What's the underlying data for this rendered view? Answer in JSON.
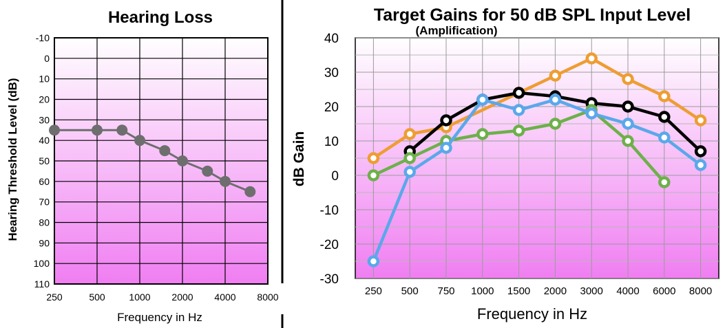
{
  "chart_data": [
    {
      "type": "line",
      "title": "Hearing Loss",
      "xlabel": "Frequency in Hz",
      "ylabel": "Hearing Threshold Level (dB)",
      "x_scale": "log2",
      "x_ticks": [
        250,
        500,
        1000,
        2000,
        4000,
        8000
      ],
      "y_ticks": [
        -10,
        0,
        10,
        20,
        30,
        40,
        50,
        60,
        70,
        80,
        90,
        100,
        110
      ],
      "ylim": [
        -10,
        110
      ],
      "y_inverted": true,
      "grid": true,
      "background": "white-to-magenta gradient",
      "series": [
        {
          "color": "#6e6e6e",
          "x": [
            250,
            500,
            750,
            1000,
            1500,
            2000,
            3000,
            4000,
            6000
          ],
          "y": [
            35,
            35,
            35,
            40,
            45,
            50,
            55,
            60,
            65
          ]
        }
      ]
    },
    {
      "type": "line",
      "title": "Target Gains for 50 dB SPL Input Level",
      "subtitle": "(Amplification)",
      "xlabel": "Frequency in Hz",
      "ylabel": "dB Gain",
      "categories": [
        "250",
        "500",
        "750",
        "1000",
        "1500",
        "2000",
        "3000",
        "4000",
        "6000",
        "8000"
      ],
      "y_ticks": [
        40,
        30,
        20,
        10,
        0,
        -10,
        -20,
        -30
      ],
      "ylim": [
        -30,
        40
      ],
      "grid": true,
      "background": "white-to-magenta gradient",
      "series": [
        {
          "color": "#ee9d33",
          "values": [
            5,
            12,
            14,
            null,
            24,
            29,
            34,
            28,
            23,
            16
          ]
        },
        {
          "color": "#000000",
          "values": [
            null,
            7,
            16,
            22,
            24,
            23,
            21,
            20,
            17,
            7
          ]
        },
        {
          "color": "#6db04a",
          "values": [
            0,
            5,
            10,
            12,
            13,
            15,
            19,
            10,
            -2,
            null
          ]
        },
        {
          "color": "#5aa8ea",
          "values": [
            -25,
            1,
            8,
            22,
            19,
            22,
            18,
            15,
            11,
            3
          ]
        }
      ]
    }
  ]
}
